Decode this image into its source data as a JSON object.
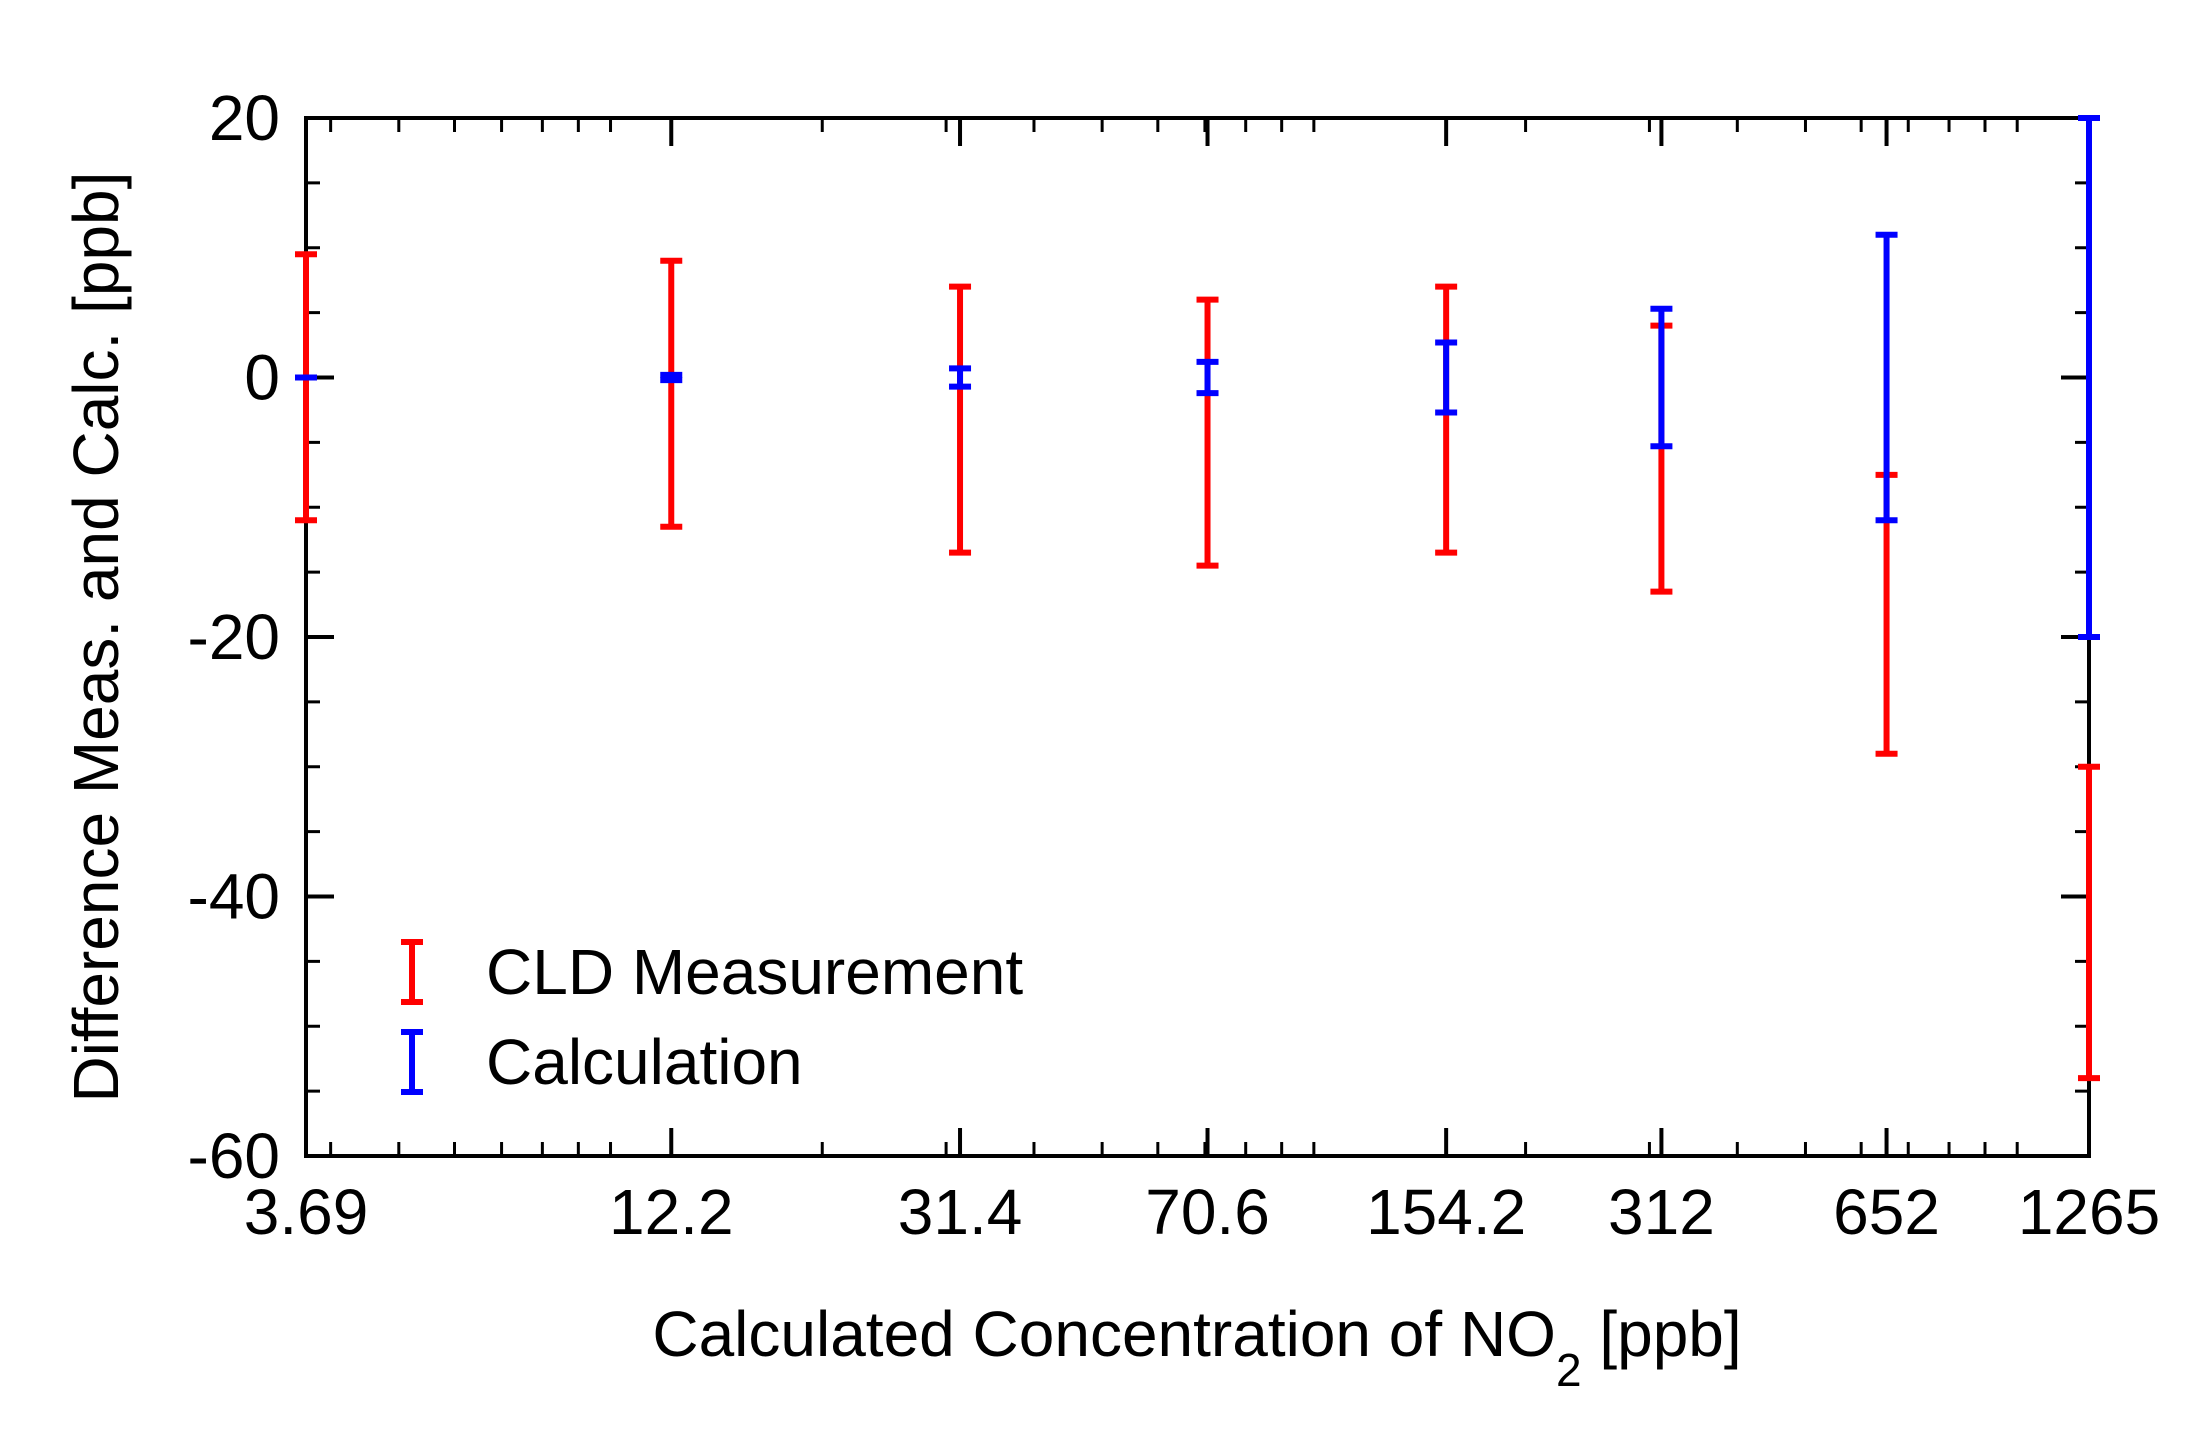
{
  "chart_data": {
    "type": "scatter",
    "style": "error-bars",
    "title": "",
    "xlabel": "Calculated Concentration of NO",
    "xlabel_subscript": "2",
    "xlabel_suffix": " [ppb]",
    "ylabel": "Difference Meas. and Calc. [ppb]",
    "xscale": "log",
    "xlim": [
      3.69,
      1265
    ],
    "ylim": [
      -60,
      20
    ],
    "x_ticks": [
      3.69,
      12.2,
      31.4,
      70.6,
      154.2,
      312,
      652,
      1265
    ],
    "x_tick_labels": [
      "3.69",
      "12.2",
      "31.4",
      "70.6",
      "154.2",
      "312",
      "652",
      "1265"
    ],
    "y_ticks": [
      20,
      0,
      -20,
      -40,
      -60
    ],
    "y_tick_labels": [
      "20",
      "0",
      "-20",
      "-40",
      "-60"
    ],
    "y_minor_step": 5,
    "grid": false,
    "legend_position": "bottom-left",
    "series": [
      {
        "name": "CLD Measurement",
        "color": "#ff0000",
        "points": [
          {
            "x": 3.69,
            "low": -11,
            "high": 9.5
          },
          {
            "x": 12.2,
            "low": -11.5,
            "high": 9
          },
          {
            "x": 31.4,
            "low": -13.5,
            "high": 7
          },
          {
            "x": 70.6,
            "low": -14.5,
            "high": 6
          },
          {
            "x": 154.2,
            "low": -13.5,
            "high": 7
          },
          {
            "x": 312,
            "low": -16.5,
            "high": 4
          },
          {
            "x": 652,
            "low": -29,
            "high": -7.5
          },
          {
            "x": 1265,
            "low": -54,
            "high": -30
          }
        ]
      },
      {
        "name": "Calculation",
        "color": "#0000ff",
        "points": [
          {
            "x": 3.69,
            "low": 0,
            "high": 0
          },
          {
            "x": 12.2,
            "low": -0.2,
            "high": 0.2
          },
          {
            "x": 31.4,
            "low": -0.7,
            "high": 0.7
          },
          {
            "x": 70.6,
            "low": -1.2,
            "high": 1.2
          },
          {
            "x": 154.2,
            "low": -2.7,
            "high": 2.7
          },
          {
            "x": 312,
            "low": -5.3,
            "high": 5.3
          },
          {
            "x": 652,
            "low": -11,
            "high": 11
          },
          {
            "x": 1265,
            "low": -20,
            "high": 20
          }
        ]
      }
    ]
  }
}
